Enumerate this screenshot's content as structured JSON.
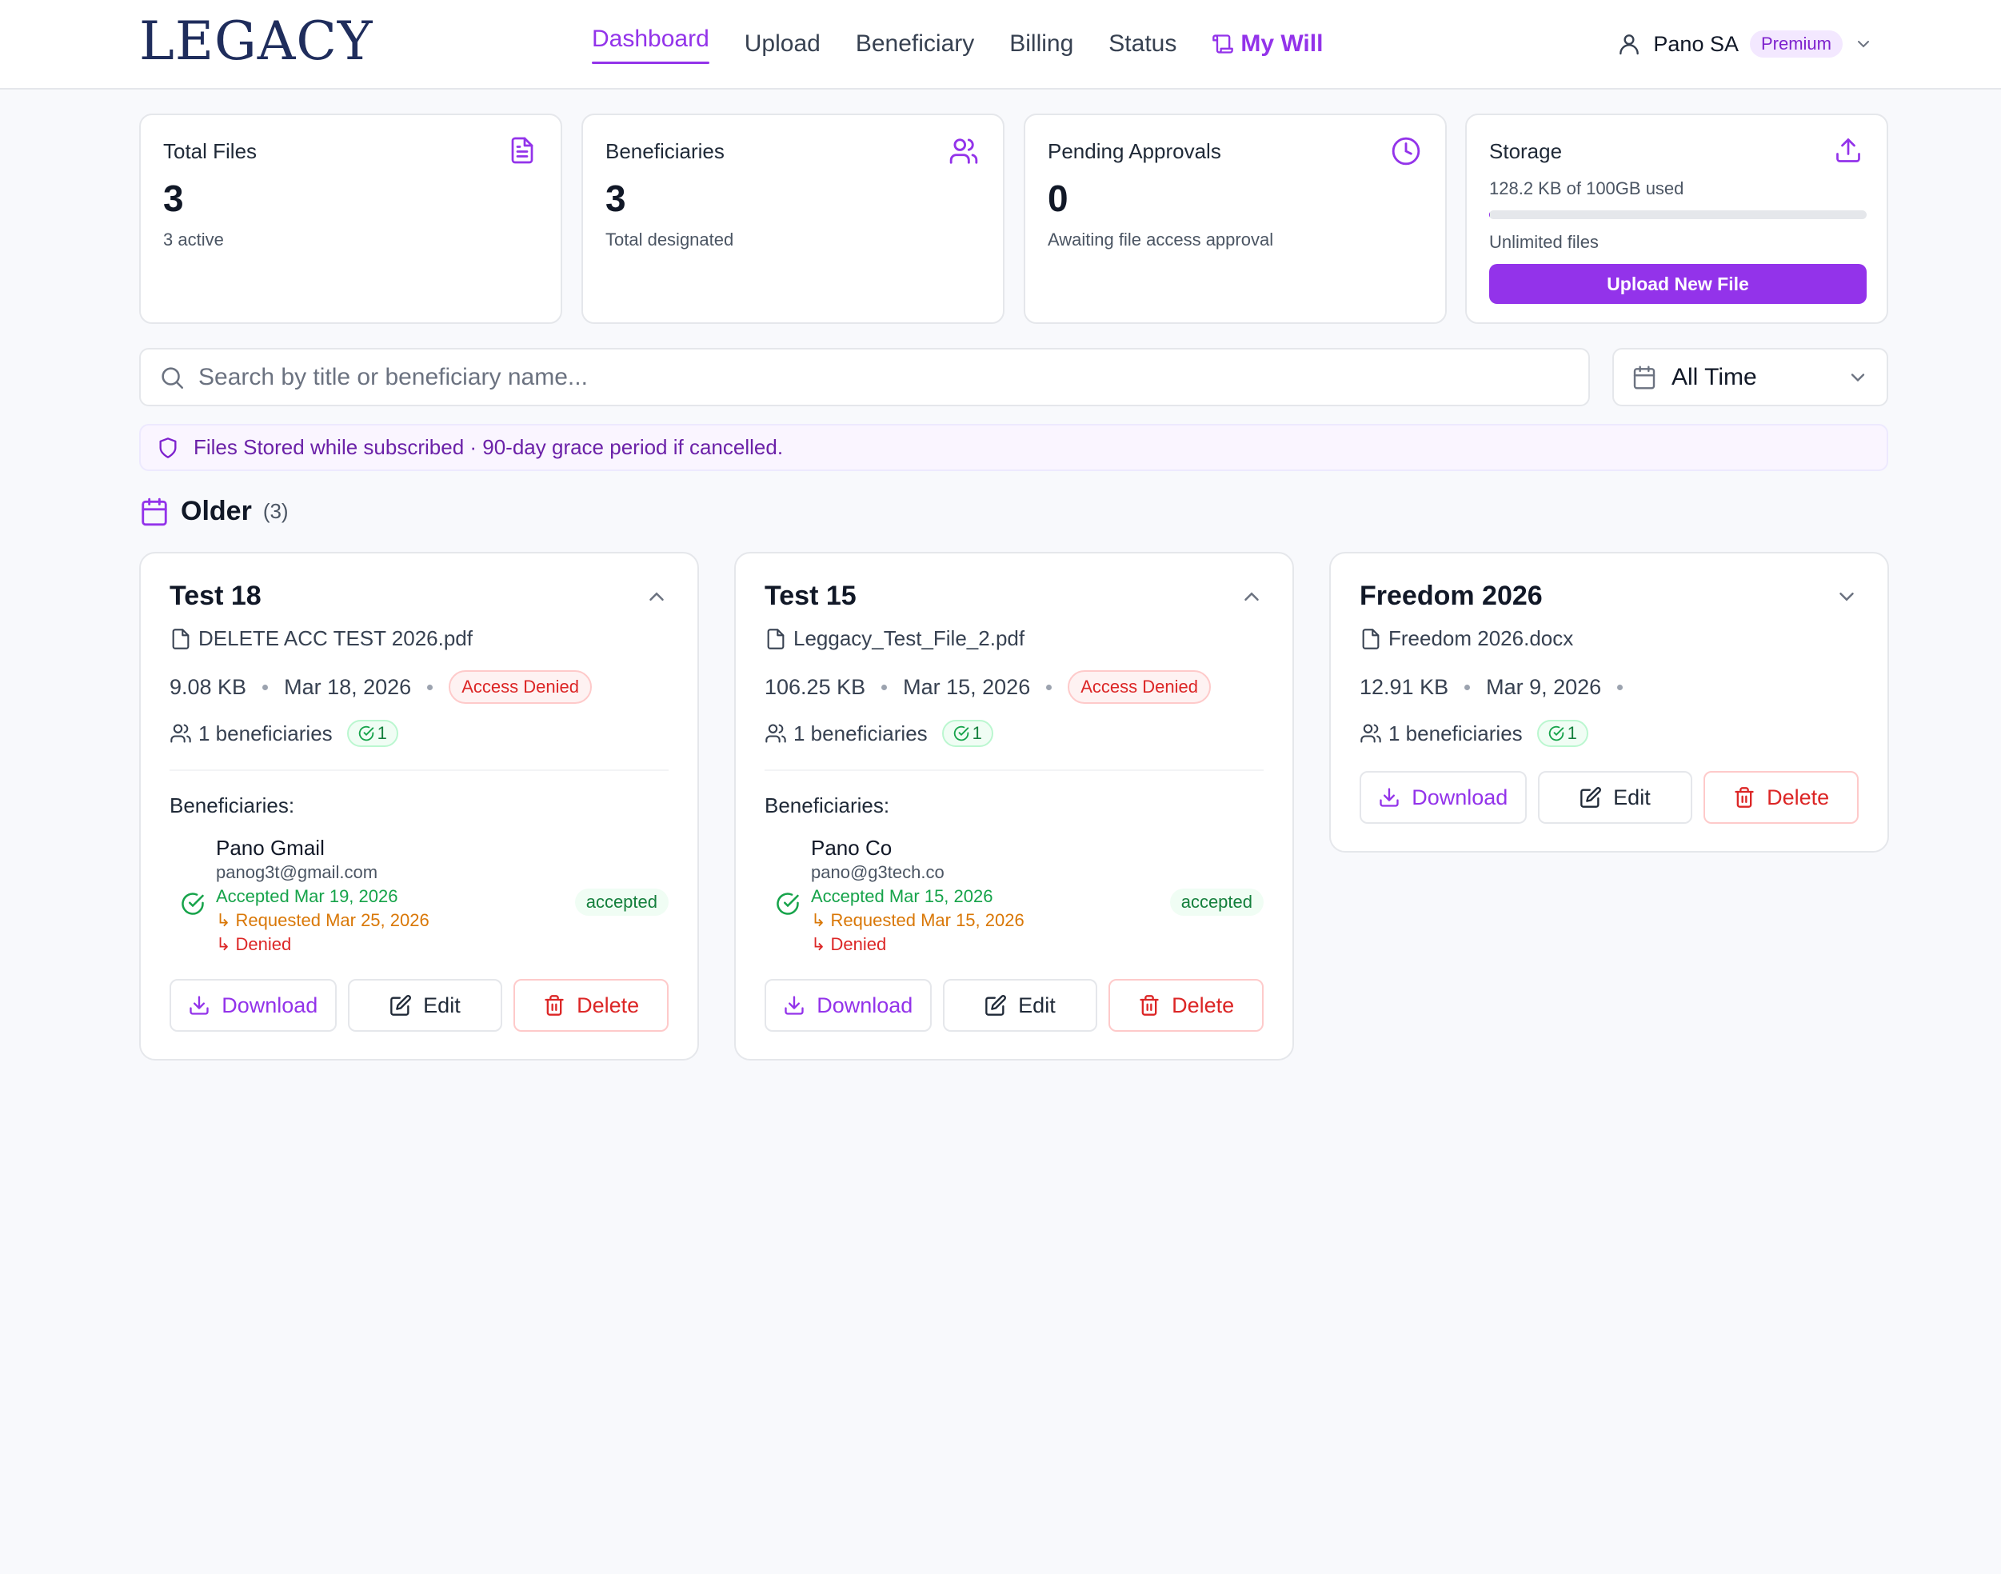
{
  "app": {
    "logo": "LEGACY"
  },
  "nav": {
    "items": [
      {
        "label": "Dashboard",
        "active": true
      },
      {
        "label": "Upload"
      },
      {
        "label": "Beneficiary"
      },
      {
        "label": "Billing"
      },
      {
        "label": "Status"
      },
      {
        "label": "My Will",
        "icon": "scroll-icon"
      }
    ]
  },
  "user": {
    "name": "Pano SA",
    "plan": "Premium"
  },
  "stats": {
    "total_files": {
      "title": "Total Files",
      "value": "3",
      "sub": "3 active",
      "icon": "file-text-icon"
    },
    "beneficiaries": {
      "title": "Beneficiaries",
      "value": "3",
      "sub": "Total designated",
      "icon": "users-icon"
    },
    "pending": {
      "title": "Pending Approvals",
      "value": "0",
      "sub": "Awaiting file access approval",
      "icon": "clock-icon"
    },
    "storage": {
      "title": "Storage",
      "used_text": "128.2 KB of 100GB used",
      "used_fraction": 0.0013,
      "files_text": "Unlimited files",
      "button": "Upload New File",
      "icon": "upload-icon"
    }
  },
  "search": {
    "placeholder": "Search by title or beneficiary name...",
    "value": ""
  },
  "filter": {
    "selected": "All Time"
  },
  "banner": {
    "text": "Files Stored while subscribed · 90-day grace period if cancelled."
  },
  "section": {
    "title": "Older",
    "count": "(3)"
  },
  "files": [
    {
      "title": "Test 18",
      "file_name": "DELETE ACC TEST 2026.pdf",
      "size": "9.08 KB",
      "date": "Mar 18, 2026",
      "status": "Access Denied",
      "beneficiaries_text": "1 beneficiaries",
      "accepted_count": "1",
      "expanded": true,
      "beneficiaries_label": "Beneficiaries:",
      "beneficiary": {
        "name": "Pano Gmail",
        "email": "panog3t@gmail.com",
        "accepted": "Accepted Mar 19, 2026",
        "requested": "↳ Requested Mar 25, 2026",
        "denied": "↳ Denied",
        "status": "accepted"
      },
      "actions": {
        "download": "Download",
        "edit": "Edit",
        "delete": "Delete"
      }
    },
    {
      "title": "Test 15",
      "file_name": "Leggacy_Test_File_2.pdf",
      "size": "106.25 KB",
      "date": "Mar 15, 2026",
      "status": "Access Denied",
      "beneficiaries_text": "1 beneficiaries",
      "accepted_count": "1",
      "expanded": true,
      "beneficiaries_label": "Beneficiaries:",
      "beneficiary": {
        "name": "Pano Co",
        "email": "pano@g3tech.co",
        "accepted": "Accepted Mar 15, 2026",
        "requested": "↳ Requested Mar 15, 2026",
        "denied": "↳ Denied",
        "status": "accepted"
      },
      "actions": {
        "download": "Download",
        "edit": "Edit",
        "delete": "Delete"
      }
    },
    {
      "title": "Freedom 2026",
      "file_name": "Freedom 2026.docx",
      "size": "12.91 KB",
      "date": "Mar 9, 2026",
      "beneficiaries_text": "1 beneficiaries",
      "accepted_count": "1",
      "expanded": false,
      "actions": {
        "download": "Download",
        "edit": "Edit",
        "delete": "Delete"
      }
    }
  ],
  "colors": {
    "accent": "#9333ea",
    "danger": "#dc2626",
    "success": "#16a34a",
    "warning": "#d97706",
    "brand": "#1f2d5c"
  }
}
